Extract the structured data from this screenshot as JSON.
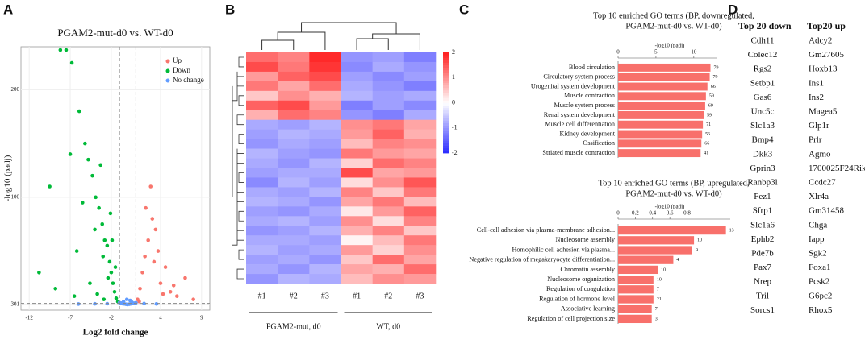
{
  "panels": [
    "A",
    "B",
    "C",
    "D"
  ],
  "chart_data": [
    {
      "type": "scatter",
      "title": "PGAM2-mut-d0  vs. WT-d0",
      "xlabel": "Log2 fold change",
      "ylabel": "-log10 (padj)",
      "xlim": [
        -13,
        10
      ],
      "xticks": [
        -12,
        -7,
        -2,
        4,
        9
      ],
      "ylim": [
        -5,
        240
      ],
      "yticks": [
        {
          "value": 0.301,
          "label": ".301"
        },
        100,
        200
      ],
      "grid": true,
      "legend": "top-right",
      "cutoff_lines": {
        "x": [
          -1,
          1
        ],
        "y": 1.301
      },
      "series": [
        {
          "name": "Up",
          "color": "#f8766d",
          "x": [
            1.2,
            1.5,
            1.8,
            2.1,
            2.5,
            3.0,
            3.4,
            4.0,
            4.6,
            5.2,
            6.0,
            7.0,
            8.0,
            2.8,
            3.7,
            1.4,
            2.2,
            4.3,
            5.6,
            3.2
          ],
          "values": [
            5,
            15,
            30,
            45,
            60,
            80,
            70,
            20,
            35,
            12,
            8,
            25,
            5,
            110,
            50,
            3,
            90,
            10,
            18,
            40
          ]
        },
        {
          "name": "Down",
          "color": "#00ba38",
          "x": [
            -8.2,
            -7.5,
            -6.8,
            -5.9,
            -5.2,
            -4.8,
            -4.3,
            -3.9,
            -3.5,
            -3.1,
            -2.8,
            -2.5,
            -2.2,
            -2.0,
            -1.8,
            -1.6,
            -1.4,
            -1.2,
            -9.5,
            -10.8,
            -6.2,
            -4.0,
            -3.0,
            -2.4,
            -1.9,
            -5.5,
            -7.0,
            -8.8,
            -3.7,
            -2.9,
            -1.5,
            -4.6,
            -6.5,
            -2.1,
            -3.3
          ],
          "values": [
            237,
            237,
            225,
            180,
            150,
            135,
            120,
            100,
            90,
            75,
            60,
            55,
            40,
            30,
            20,
            12,
            6,
            3,
            110,
            30,
            50,
            70,
            45,
            25,
            60,
            95,
            140,
            15,
            10,
            5,
            35,
            20,
            8,
            85,
            130
          ]
        },
        {
          "name": "No change",
          "color": "#619cff",
          "x": [
            -1.0,
            -0.8,
            -0.6,
            -0.4,
            -0.2,
            0,
            0.2,
            0.4,
            0.6,
            0.8,
            1.0,
            -0.5,
            0.5,
            -0.1,
            0.3,
            -2.5,
            -4,
            2,
            3.5,
            -6
          ],
          "values": [
            2,
            1.5,
            1,
            0.8,
            0.5,
            0.3,
            0.6,
            0.9,
            1.2,
            1.4,
            1.8,
            3,
            2.5,
            5,
            4,
            1,
            0.9,
            1.1,
            0.8,
            0.7
          ]
        }
      ]
    },
    {
      "type": "heatmap",
      "columns": [
        "#1",
        "#2",
        "#3",
        "#1",
        "#2",
        "#3"
      ],
      "groups": [
        "PGAM2-mut,  d0",
        "WT, d0"
      ],
      "zlim": [
        -2,
        2
      ],
      "zticks": [
        2,
        1,
        0,
        -1,
        -2
      ],
      "colorscale": [
        "#2a2aff",
        "#ffffff",
        "#ff1e1e"
      ],
      "matrix": [
        [
          1.3,
          1.1,
          1.9,
          -1.0,
          -0.9,
          -1.2
        ],
        [
          1.6,
          1.2,
          1.8,
          -1.1,
          -0.8,
          -1.0
        ],
        [
          0.9,
          1.4,
          1.6,
          -0.9,
          -1.1,
          -0.9
        ],
        [
          1.2,
          0.8,
          1.3,
          -0.8,
          -1.0,
          -1.2
        ],
        [
          0.5,
          1.0,
          0.7,
          -0.7,
          -0.9,
          -0.8
        ],
        [
          1.4,
          1.6,
          0.9,
          -1.2,
          -0.9,
          -1.1
        ],
        [
          0.7,
          1.3,
          1.1,
          -1.0,
          -1.2,
          -0.8
        ],
        [
          -0.8,
          -0.9,
          -0.7,
          1.0,
          1.2,
          0.8
        ],
        [
          -0.9,
          -0.7,
          -0.8,
          0.9,
          1.4,
          0.7
        ],
        [
          -1.0,
          -0.8,
          -0.9,
          0.6,
          1.1,
          1.0
        ],
        [
          -0.7,
          -0.9,
          -1.0,
          1.2,
          0.9,
          0.8
        ],
        [
          -0.8,
          -1.0,
          -0.7,
          0.4,
          1.3,
          1.1
        ],
        [
          -0.9,
          -0.8,
          -0.8,
          1.6,
          0.8,
          0.9
        ],
        [
          -1.1,
          -0.7,
          -0.9,
          0.3,
          1.0,
          1.5
        ],
        [
          -0.8,
          -0.9,
          -0.7,
          1.1,
          0.5,
          1.2
        ],
        [
          -0.7,
          -0.8,
          -1.0,
          0.8,
          1.2,
          0.6
        ],
        [
          -0.9,
          -1.0,
          -0.8,
          0.2,
          0.9,
          1.4
        ],
        [
          -0.8,
          -0.7,
          -0.9,
          1.0,
          0.3,
          1.1
        ],
        [
          -1.0,
          -0.9,
          -0.7,
          0.7,
          1.1,
          0.5
        ],
        [
          -0.8,
          -0.8,
          -0.9,
          0.1,
          0.6,
          1.2
        ],
        [
          -0.7,
          -0.9,
          -0.8,
          0.9,
          0.4,
          1.0
        ],
        [
          -0.9,
          -0.8,
          -1.0,
          0.5,
          1.3,
          0.8
        ],
        [
          -0.8,
          -1.0,
          -0.7,
          0.8,
          0.7,
          1.3
        ],
        [
          -1.0,
          -0.7,
          -0.8,
          0.6,
          1.0,
          0.9
        ]
      ]
    },
    {
      "type": "barh",
      "title": [
        "Top 10 enriched GO terms (BP, downregulated,",
        "PGAM2-mut-d0  vs. WT-d0)"
      ],
      "xlabel": "-log10 (padj)",
      "xlim": [
        0,
        13
      ],
      "xticks": [
        0,
        5,
        10
      ],
      "color": "#f8706b",
      "categories": [
        "Blood circulation",
        "Circulatory system process",
        "Urogenital system development",
        "Muscle contraction",
        "Muscle system process",
        "Renal system development",
        "Muscle cell differentiation",
        "Kidney development",
        "Ossification",
        "Striated muscle contraction"
      ],
      "values": [
        12.2,
        12.1,
        11.8,
        11.6,
        11.5,
        11.3,
        11.2,
        11.1,
        11.0,
        10.9
      ],
      "counts": [
        79,
        79,
        66,
        59,
        69,
        59,
        71,
        56,
        66,
        41
      ]
    },
    {
      "type": "barh",
      "title": [
        "Top 10 enriched GO terms (BP, upregulated,",
        "PGAM2-mut-d0  vs. WT-d0)"
      ],
      "xlabel": "-log10 (padj)",
      "xlim": [
        0,
        1.3
      ],
      "xticks": [
        0,
        0.2,
        0.4,
        0.6,
        0.8
      ],
      "color": "#f8706b",
      "categories": [
        "Cell-cell adhesion via plasma-membrane adhesion...",
        "Nucleosome assembly",
        "Homophilic cell adhesion via plasma...",
        "Negative regulation of megakaryocyte differentiation...",
        "Chromatin assembly",
        "Nucleosome organization",
        "Regulation of coagulation",
        "Regulation of hormone level",
        "Associative learning",
        "Regulation of cell projection size"
      ],
      "values": [
        1.25,
        0.88,
        0.86,
        0.64,
        0.46,
        0.41,
        0.41,
        0.41,
        0.39,
        0.39
      ],
      "counts": [
        13,
        10,
        9,
        4,
        10,
        10,
        7,
        21,
        7,
        3
      ]
    }
  ],
  "table": {
    "header": [
      "Top 20 down",
      "Top20 up"
    ],
    "rows": [
      [
        "Cdh11",
        "Adcy2"
      ],
      [
        "Colec12",
        "Gm27605"
      ],
      [
        "Rgs2",
        "Hoxb13"
      ],
      [
        "Setbp1",
        "Ins1"
      ],
      [
        "Gas6",
        "Ins2"
      ],
      [
        "Unc5c",
        "Magea5"
      ],
      [
        "Slc1a3",
        "Glp1r"
      ],
      [
        "Bmp4",
        "Prlr"
      ],
      [
        "Dkk3",
        "Agmo"
      ],
      [
        "Gprin3",
        "1700025F24Rik"
      ],
      [
        "Ranbp3l",
        "Ccdc27"
      ],
      [
        "Fez1",
        "Xlr4a"
      ],
      [
        "Sfrp1",
        "Gm31458"
      ],
      [
        "Slc1a6",
        "Chga"
      ],
      [
        "Ephb2",
        "Iapp"
      ],
      [
        "Pde7b",
        "Sgk2"
      ],
      [
        "Pax7",
        "Foxa1"
      ],
      [
        "Nrep",
        "Pcsk2"
      ],
      [
        "Tril",
        "G6pc2"
      ],
      [
        "Sorcs1",
        "Rhox5"
      ]
    ]
  }
}
